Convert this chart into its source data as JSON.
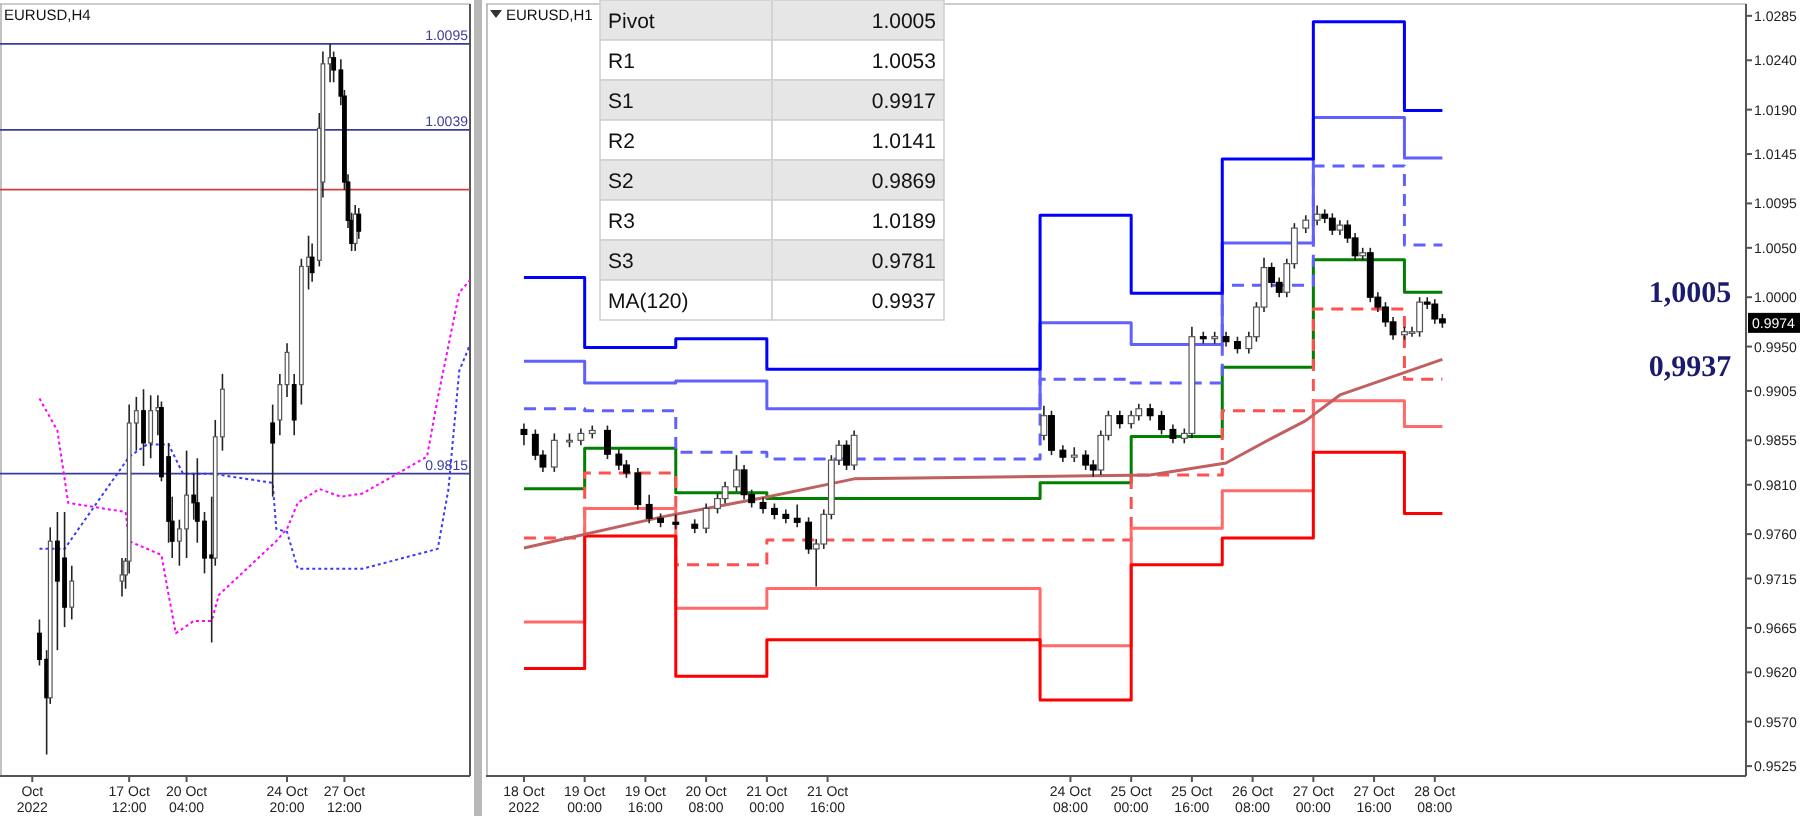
{
  "chart_data": [
    {
      "type": "candlestick",
      "title": "EURUSD,H4",
      "xlim": [
        "2022-10-11T12:00",
        "2022-11-02T08:00"
      ],
      "ylim": [
        0.9618,
        1.0121
      ],
      "tick_labels": "x",
      "xticks": [
        {
          "value": "2022-10-13T00:00",
          "label": "Oct 2022"
        },
        {
          "value": "2022-10-17T12:00",
          "label": "17 Oct 12:00"
        },
        {
          "value": "2022-10-20T04:00",
          "label": "20 Oct 04:00"
        },
        {
          "value": "2022-10-24T20:00",
          "label": "24 Oct 20:00"
        },
        {
          "value": "2022-10-27T12:00",
          "label": "27 Oct 12:00"
        }
      ],
      "x": [
        "2022-10-13T08:00",
        "2022-10-13T16:00",
        "2022-10-13T20:00",
        "2022-10-14T04:00",
        "2022-10-14T12:00",
        "2022-10-14T20:00",
        "2022-10-17T04:00",
        "2022-10-17T08:00",
        "2022-10-17T12:00",
        "2022-10-17T20:00",
        "2022-10-18T04:00",
        "2022-10-18T12:00",
        "2022-10-18T20:00",
        "2022-10-19T00:00",
        "2022-10-19T08:00",
        "2022-10-19T12:00",
        "2022-10-19T20:00",
        "2022-10-20T04:00",
        "2022-10-20T12:00",
        "2022-10-20T16:00",
        "2022-10-21T00:00",
        "2022-10-21T08:00",
        "2022-10-21T12:00",
        "2022-10-21T20:00",
        "2022-10-24T04:00",
        "2022-10-24T12:00",
        "2022-10-24T20:00",
        "2022-10-25T04:00",
        "2022-10-25T12:00",
        "2022-10-25T20:00",
        "2022-10-26T00:00",
        "2022-10-26T08:00",
        "2022-10-26T12:00",
        "2022-10-26T20:00",
        "2022-10-27T00:00",
        "2022-10-27T08:00",
        "2022-10-27T12:00",
        "2022-10-27T16:00",
        "2022-10-27T20:00",
        "2022-10-28T00:00",
        "2022-10-28T04:00"
      ],
      "ohlc": [
        [
          0.9711,
          0.972,
          0.969,
          0.9694
        ],
        [
          0.9694,
          0.97,
          0.9632,
          0.9669
        ],
        [
          0.9669,
          0.978,
          0.9665,
          0.9771
        ],
        [
          0.9771,
          0.979,
          0.97,
          0.9745
        ],
        [
          0.976,
          0.979,
          0.9715,
          0.9728
        ],
        [
          0.9728,
          0.9755,
          0.972,
          0.9745
        ],
        [
          0.9745,
          0.976,
          0.9735,
          0.9749
        ],
        [
          0.9749,
          0.976,
          0.974,
          0.9758
        ],
        [
          0.9758,
          0.986,
          0.975,
          0.9848
        ],
        [
          0.9848,
          0.9865,
          0.983,
          0.9856
        ],
        [
          0.9856,
          0.987,
          0.982,
          0.9835
        ],
        [
          0.9835,
          0.9866,
          0.9825,
          0.9856
        ],
        [
          0.9856,
          0.9866,
          0.984,
          0.9858
        ],
        [
          0.9858,
          0.9862,
          0.981,
          0.9813
        ],
        [
          0.9826,
          0.9835,
          0.977,
          0.9784
        ],
        [
          0.9784,
          0.98,
          0.976,
          0.9771
        ],
        [
          0.9771,
          0.9785,
          0.9755,
          0.9779
        ],
        [
          0.9779,
          0.983,
          0.976,
          0.9801
        ],
        [
          0.9801,
          0.9815,
          0.9785,
          0.9796
        ],
        [
          0.9796,
          0.9825,
          0.977,
          0.9784
        ],
        [
          0.9784,
          0.979,
          0.975,
          0.976
        ],
        [
          0.9762,
          0.98,
          0.9705,
          0.976
        ],
        [
          0.976,
          0.985,
          0.9755,
          0.9839
        ],
        [
          0.9839,
          0.988,
          0.983,
          0.987
        ],
        [
          0.9848,
          0.986,
          0.98,
          0.9835
        ],
        [
          0.985,
          0.988,
          0.984,
          0.9873
        ],
        [
          0.9873,
          0.99,
          0.9865,
          0.9894
        ],
        [
          0.9873,
          0.988,
          0.984,
          0.985
        ],
        [
          0.9873,
          0.9955,
          0.986,
          0.995
        ],
        [
          0.995,
          0.997,
          0.9935,
          0.9956
        ],
        [
          0.9956,
          0.9965,
          0.994,
          0.9946
        ],
        [
          0.9954,
          1.005,
          0.995,
          1.004
        ],
        [
          1.0005,
          1.009,
          0.9995,
          1.0082
        ],
        [
          1.0082,
          1.0095,
          1.007,
          1.0086
        ],
        [
          1.0086,
          1.009,
          1.007,
          1.0078
        ],
        [
          1.0078,
          1.0085,
          1.0055,
          1.0061
        ],
        [
          1.0061,
          1.0065,
          1.0,
          1.0005
        ],
        [
          1.0005,
          1.001,
          0.9975,
          0.998
        ],
        [
          0.998,
          0.9985,
          0.996,
          0.9965
        ],
        [
          0.9965,
          0.999,
          0.996,
          0.9984
        ],
        [
          0.9984,
          0.9988,
          0.9968,
          0.9973
        ]
      ],
      "series": [
        {
          "type": "line",
          "line_style": "dotted",
          "color": "#3a3aff",
          "x": [
            "2022-10-13T08:00",
            "2022-10-14T12:00",
            "2022-10-17T12:00",
            "2022-10-18T08:00",
            "2022-10-19T08:00",
            "2022-10-20T00:00",
            "2022-10-21T08:00",
            "2022-10-24T04:00",
            "2022-10-24T08:00",
            "2022-10-24T20:00",
            "2022-10-25T08:00",
            "2022-10-28T08:00",
            "2022-10-31T20:00",
            "2022-11-01T08:00",
            "2022-11-01T20:00",
            "2022-11-02T08:00"
          ],
          "values": [
            0.9766,
            0.9766,
            0.9826,
            0.9834,
            0.9834,
            0.9815,
            0.9815,
            0.9809,
            0.9779,
            0.9777,
            0.9753,
            0.9753,
            0.9766,
            0.9805,
            0.9882,
            0.9899
          ]
        },
        {
          "type": "line",
          "line_style": "dotted",
          "color": "#ff00ff",
          "x": [
            "2022-10-13T08:00",
            "2022-10-14T04:00",
            "2022-10-14T16:00",
            "2022-10-17T08:00",
            "2022-10-17T12:00",
            "2022-10-19T00:00",
            "2022-10-19T08:00",
            "2022-10-19T16:00",
            "2022-10-20T12:00",
            "2022-10-21T08:00",
            "2022-10-21T16:00",
            "2022-10-24T08:00",
            "2022-10-24T20:00",
            "2022-10-25T08:00",
            "2022-10-26T08:00",
            "2022-10-27T08:00",
            "2022-10-28T08:00",
            "2022-10-31T08:00",
            "2022-10-31T20:00",
            "2022-11-01T20:00",
            "2022-11-02T08:00"
          ],
          "values": [
            0.9864,
            0.9843,
            0.9796,
            0.979,
            0.9771,
            0.9762,
            0.9736,
            0.9711,
            0.9719,
            0.9719,
            0.9736,
            0.9771,
            0.9779,
            0.9796,
            0.9805,
            0.98,
            0.9802,
            0.9826,
            0.9864,
            0.9933,
            0.9941
          ]
        }
      ],
      "ref_lines": [
        {
          "axis": "y",
          "value": 1.0095,
          "label": "1.0095",
          "color": "#3c3c9c"
        },
        {
          "axis": "y",
          "value": 1.0039,
          "label": "1.0039",
          "color": "#3c3c9c"
        },
        {
          "axis": "y",
          "value": 1.0,
          "color": "#d04040"
        },
        {
          "axis": "y",
          "value": 0.9815,
          "label": "0.9815",
          "color": "#3c3c9c"
        }
      ]
    },
    {
      "type": "candlestick",
      "title": "EURUSD,H1",
      "xlim": [
        "2022-10-17T22:00",
        "2022-10-31T18:00"
      ],
      "ylim": [
        0.9515,
        1.0297
      ],
      "xticks": [
        {
          "value": "2022-10-18T08:00",
          "label": "18 Oct 2022"
        },
        {
          "value": "2022-10-19T00:00",
          "label": "19 Oct 00:00"
        },
        {
          "value": "2022-10-19T16:00",
          "label": "19 Oct 16:00"
        },
        {
          "value": "2022-10-20T08:00",
          "label": "20 Oct 08:00"
        },
        {
          "value": "2022-10-21T00:00",
          "label": "21 Oct 00:00"
        },
        {
          "value": "2022-10-21T16:00",
          "label": "21 Oct 16:00"
        },
        {
          "value": "2022-10-24T08:00",
          "label": "24 Oct 08:00"
        },
        {
          "value": "2022-10-25T00:00",
          "label": "25 Oct 00:00"
        },
        {
          "value": "2022-10-25T16:00",
          "label": "25 Oct 16:00"
        },
        {
          "value": "2022-10-26T08:00",
          "label": "26 Oct 08:00"
        },
        {
          "value": "2022-10-27T00:00",
          "label": "27 Oct 00:00"
        },
        {
          "value": "2022-10-27T16:00",
          "label": "27 Oct 16:00"
        },
        {
          "value": "2022-10-28T08:00",
          "label": "28 Oct 08:00"
        }
      ],
      "yticks": [
        1.0285,
        {
          "value": 1.024,
          "label": "1.0240"
        },
        {
          "value": 1.019,
          "label": "1.0190"
        },
        1.0145,
        1.0095,
        {
          "value": 1.005,
          "label": "1.0050"
        },
        {
          "value": 1.0,
          "label": "1.0000"
        },
        {
          "value": 0.995,
          "label": "0.9950"
        },
        0.9905,
        0.9855,
        {
          "value": 0.981,
          "label": "0.9810"
        },
        {
          "value": 0.976,
          "label": "0.9760"
        },
        0.9715,
        0.9665,
        {
          "value": 0.962,
          "label": "0.9620"
        },
        {
          "value": 0.957,
          "label": "0.9570"
        },
        0.9525
      ],
      "x": [
        "2022-10-18T08:00",
        "2022-10-18T11:00",
        "2022-10-18T13:00",
        "2022-10-18T16:00",
        "2022-10-18T20:00",
        "2022-10-18T23:00",
        "2022-10-19T02:00",
        "2022-10-19T06:00",
        "2022-10-19T09:00",
        "2022-10-19T11:00",
        "2022-10-19T14:00",
        "2022-10-19T17:00",
        "2022-10-19T20:00",
        "2022-10-20T00:00",
        "2022-10-20T05:00",
        "2022-10-20T08:00",
        "2022-10-20T11:00",
        "2022-10-20T13:00",
        "2022-10-20T16:00",
        "2022-10-20T18:00",
        "2022-10-20T20:00",
        "2022-10-20T23:00",
        "2022-10-21T02:00",
        "2022-10-21T05:00",
        "2022-10-21T08:00",
        "2022-10-21T11:00",
        "2022-10-21T13:00",
        "2022-10-21T15:00",
        "2022-10-21T17:00",
        "2022-10-21T19:00",
        "2022-10-21T21:00",
        "2022-10-21T23:00",
        "2022-10-24T01:00",
        "2022-10-24T03:00",
        "2022-10-24T06:00",
        "2022-10-24T09:00",
        "2022-10-24T12:00",
        "2022-10-24T14:00",
        "2022-10-24T16:00",
        "2022-10-24T18:00",
        "2022-10-24T21:00",
        "2022-10-25T00:00",
        "2022-10-25T02:00",
        "2022-10-25T05:00",
        "2022-10-25T08:00",
        "2022-10-25T11:00",
        "2022-10-25T14:00",
        "2022-10-25T16:00",
        "2022-10-25T19:00",
        "2022-10-25T22:00",
        "2022-10-26T01:00",
        "2022-10-26T04:00",
        "2022-10-26T07:00",
        "2022-10-26T09:00",
        "2022-10-26T11:00",
        "2022-10-26T13:00",
        "2022-10-26T15:00",
        "2022-10-26T17:00",
        "2022-10-26T19:00",
        "2022-10-26T22:00",
        "2022-10-27T01:00",
        "2022-10-27T03:00",
        "2022-10-27T05:00",
        "2022-10-27T07:00",
        "2022-10-27T09:00",
        "2022-10-27T11:00",
        "2022-10-27T13:00",
        "2022-10-27T15:00",
        "2022-10-27T17:00",
        "2022-10-27T19:00",
        "2022-10-27T21:00",
        "2022-10-28T00:00",
        "2022-10-28T02:00",
        "2022-10-28T04:00",
        "2022-10-28T06:00",
        "2022-10-28T08:00",
        "2022-10-28T10:00"
      ],
      "ohlc": [
        [
          0.9866,
          0.9872,
          0.985,
          0.9861
        ],
        [
          0.9861,
          0.9866,
          0.9835,
          0.984
        ],
        [
          0.984,
          0.9845,
          0.9823,
          0.9828
        ],
        [
          0.9828,
          0.9862,
          0.9823,
          0.9855
        ],
        [
          0.9855,
          0.9862,
          0.9848,
          0.9855
        ],
        [
          0.9855,
          0.9867,
          0.985,
          0.9862
        ],
        [
          0.9862,
          0.987,
          0.9857,
          0.9865
        ],
        [
          0.9865,
          0.987,
          0.9836,
          0.9841
        ],
        [
          0.9841,
          0.9846,
          0.9825,
          0.983
        ],
        [
          0.983,
          0.9835,
          0.9817,
          0.9822
        ],
        [
          0.9822,
          0.9827,
          0.9785,
          0.979
        ],
        [
          0.979,
          0.98,
          0.9771,
          0.9776
        ],
        [
          0.9776,
          0.9781,
          0.9767,
          0.9772
        ],
        [
          0.9772,
          0.978,
          0.9765,
          0.977
        ],
        [
          0.977,
          0.9775,
          0.9761,
          0.9766
        ],
        [
          0.9766,
          0.9791,
          0.9761,
          0.9786
        ],
        [
          0.9786,
          0.9801,
          0.9781,
          0.9796
        ],
        [
          0.9796,
          0.9813,
          0.9791,
          0.9808
        ],
        [
          0.9808,
          0.984,
          0.9803,
          0.9825
        ],
        [
          0.9825,
          0.983,
          0.9795,
          0.98
        ],
        [
          0.98,
          0.9805,
          0.9787,
          0.9792
        ],
        [
          0.9792,
          0.9797,
          0.9781,
          0.9786
        ],
        [
          0.9786,
          0.9791,
          0.9775,
          0.978
        ],
        [
          0.978,
          0.9785,
          0.9771,
          0.9776
        ],
        [
          0.9776,
          0.979,
          0.9767,
          0.9772
        ],
        [
          0.9772,
          0.9777,
          0.974,
          0.9745
        ],
        [
          0.9745,
          0.9755,
          0.9707,
          0.975
        ],
        [
          0.975,
          0.9785,
          0.9745,
          0.978
        ],
        [
          0.978,
          0.984,
          0.9775,
          0.9835
        ],
        [
          0.9835,
          0.9855,
          0.983,
          0.985
        ],
        [
          0.985,
          0.9855,
          0.9825,
          0.983
        ],
        [
          0.983,
          0.9865,
          0.9825,
          0.986
        ],
        [
          0.986,
          0.989,
          0.9855,
          0.988
        ],
        [
          0.988,
          0.9885,
          0.984,
          0.9845
        ],
        [
          0.9845,
          0.985,
          0.9833,
          0.9838
        ],
        [
          0.9838,
          0.9848,
          0.9833,
          0.984
        ],
        [
          0.984,
          0.9845,
          0.9825,
          0.983
        ],
        [
          0.983,
          0.9835,
          0.9818,
          0.9825
        ],
        [
          0.9825,
          0.9865,
          0.982,
          0.986
        ],
        [
          0.986,
          0.9885,
          0.9855,
          0.988
        ],
        [
          0.988,
          0.9885,
          0.9867,
          0.9872
        ],
        [
          0.9872,
          0.9885,
          0.9867,
          0.988
        ],
        [
          0.988,
          0.9892,
          0.9875,
          0.9887
        ],
        [
          0.9887,
          0.9892,
          0.9875,
          0.988
        ],
        [
          0.988,
          0.9885,
          0.9861,
          0.9866
        ],
        [
          0.9866,
          0.9871,
          0.9852,
          0.9857
        ],
        [
          0.9857,
          0.9867,
          0.9852,
          0.9862
        ],
        [
          0.9862,
          0.997,
          0.9857,
          0.996
        ],
        [
          0.996,
          0.9965,
          0.9953,
          0.9958
        ],
        [
          0.9958,
          0.9965,
          0.9953,
          0.996
        ],
        [
          0.996,
          0.9965,
          0.995,
          0.9955
        ],
        [
          0.9955,
          0.996,
          0.9943,
          0.9948
        ],
        [
          0.9948,
          0.9965,
          0.9943,
          0.996
        ],
        [
          0.996,
          0.9995,
          0.9955,
          0.999
        ],
        [
          0.999,
          1.004,
          0.9985,
          1.003
        ],
        [
          1.003,
          1.0035,
          1.001,
          1.0015
        ],
        [
          1.0015,
          1.002,
          1.0,
          1.0005
        ],
        [
          1.0005,
          1.0039,
          1.0,
          1.0034
        ],
        [
          1.0034,
          1.0075,
          1.0029,
          1.007
        ],
        [
          1.007,
          1.0083,
          1.0065,
          1.0078
        ],
        [
          1.0078,
          1.0093,
          1.0073,
          1.0084
        ],
        [
          1.0084,
          1.0089,
          1.0075,
          1.008
        ],
        [
          1.008,
          1.0085,
          1.0063,
          1.0068
        ],
        [
          1.0068,
          1.0078,
          1.0063,
          1.0073
        ],
        [
          1.0073,
          1.0078,
          1.0055,
          1.006
        ],
        [
          1.006,
          1.0065,
          1.0037,
          1.0042
        ],
        [
          1.0042,
          1.005,
          1.0037,
          1.0045
        ],
        [
          1.0045,
          1.005,
          0.9995,
          1.0
        ],
        [
          1.0,
          1.0005,
          0.9985,
          0.999
        ],
        [
          0.999,
          0.9995,
          0.997,
          0.9975
        ],
        [
          0.9975,
          0.998,
          0.9957,
          0.9962
        ],
        [
          0.9962,
          0.997,
          0.9957,
          0.9965
        ],
        [
          0.9965,
          0.997,
          0.996,
          0.9965
        ],
        [
          0.9965,
          1.0,
          0.996,
          0.9995
        ],
        [
          0.9995,
          1.0,
          0.9988,
          0.9993
        ],
        [
          0.9993,
          0.9998,
          0.9973,
          0.9978
        ],
        [
          0.9978,
          0.9983,
          0.9969,
          0.9974
        ]
      ],
      "series": [
        {
          "type": "step",
          "color": "#008000",
          "x": [
            "2022-10-18T08:00",
            "2022-10-19T00:00",
            "2022-10-20T00:00",
            "2022-10-21T00:00",
            "2022-10-24T00:00",
            "2022-10-25T00:00",
            "2022-10-26T00:00",
            "2022-10-27T00:00",
            "2022-10-28T00:00",
            "2022-10-28T10:00"
          ],
          "values": [
            0.9806,
            0.9847,
            0.9802,
            0.9796,
            0.9812,
            0.9859,
            0.9929,
            1.0038,
            1.0005,
            1.0005
          ]
        },
        {
          "type": "step",
          "color": "#6060ff",
          "line_style": "dashed",
          "x": [
            "2022-10-18T08:00",
            "2022-10-19T00:00",
            "2022-10-20T00:00",
            "2022-10-21T00:00",
            "2022-10-24T00:00",
            "2022-10-25T00:00",
            "2022-10-26T00:00",
            "2022-10-27T00:00",
            "2022-10-28T00:00",
            "2022-10-28T10:00"
          ],
          "values": [
            0.9887,
            0.9885,
            0.9843,
            0.9836,
            0.9917,
            0.9913,
            1.0012,
            1.0133,
            1.0053,
            1.0053
          ]
        },
        {
          "type": "step",
          "color": "#ff5050",
          "line_style": "dashed",
          "x": [
            "2022-10-18T08:00",
            "2022-10-19T00:00",
            "2022-10-20T00:00",
            "2022-10-21T00:00",
            "2022-10-24T00:00",
            "2022-10-25T00:00",
            "2022-10-26T00:00",
            "2022-10-27T00:00",
            "2022-10-28T00:00",
            "2022-10-28T10:00"
          ],
          "values": [
            0.9756,
            0.9822,
            0.9729,
            0.9754,
            0.9754,
            0.982,
            0.9885,
            0.9988,
            0.9917,
            0.9917
          ]
        },
        {
          "type": "step",
          "color": "#6060ff",
          "x": [
            "2022-10-18T08:00",
            "2022-10-19T00:00",
            "2022-10-20T00:00",
            "2022-10-21T00:00",
            "2022-10-24T00:00",
            "2022-10-25T00:00",
            "2022-10-26T00:00",
            "2022-10-27T00:00",
            "2022-10-28T00:00",
            "2022-10-28T10:00"
          ],
          "values": [
            0.9935,
            0.9913,
            0.9915,
            0.9887,
            0.9974,
            0.9952,
            1.0055,
            1.0182,
            1.0141,
            1.0141
          ]
        },
        {
          "type": "step",
          "color": "#ff6a6a",
          "x": [
            "2022-10-18T08:00",
            "2022-10-19T00:00",
            "2022-10-20T00:00",
            "2022-10-21T00:00",
            "2022-10-24T00:00",
            "2022-10-25T00:00",
            "2022-10-26T00:00",
            "2022-10-27T00:00",
            "2022-10-28T00:00",
            "2022-10-28T10:00"
          ],
          "values": [
            0.9671,
            0.9786,
            0.9685,
            0.9705,
            0.9647,
            0.9766,
            0.9804,
            0.9895,
            0.9869,
            0.9869
          ]
        },
        {
          "type": "step",
          "color": "#0000ff",
          "x": [
            "2022-10-18T08:00",
            "2022-10-19T00:00",
            "2022-10-20T00:00",
            "2022-10-21T00:00",
            "2022-10-24T00:00",
            "2022-10-25T00:00",
            "2022-10-26T00:00",
            "2022-10-27T00:00",
            "2022-10-28T00:00",
            "2022-10-28T10:00"
          ],
          "values": [
            1.002,
            0.9949,
            0.9958,
            0.9927,
            1.0083,
            1.0004,
            1.014,
            1.0279,
            1.0189,
            1.0189
          ]
        },
        {
          "type": "step",
          "color": "#ff0000",
          "x": [
            "2022-10-18T08:00",
            "2022-10-19T00:00",
            "2022-10-20T00:00",
            "2022-10-21T00:00",
            "2022-10-24T00:00",
            "2022-10-25T00:00",
            "2022-10-26T00:00",
            "2022-10-27T00:00",
            "2022-10-28T00:00",
            "2022-10-28T10:00"
          ],
          "values": [
            0.9624,
            0.9758,
            0.9616,
            0.9653,
            0.9592,
            0.9729,
            0.9756,
            0.9843,
            0.9781,
            0.9781
          ]
        },
        {
          "type": "line",
          "color": "#c06060",
          "x": [
            "2022-10-18T08:00",
            "2022-10-19T21:00",
            "2022-10-20T22:00",
            "2022-10-21T23:00",
            "2022-10-25T05:00",
            "2022-10-25T15:00",
            "2022-10-26T01:00",
            "2022-10-26T13:00",
            "2022-10-26T22:00",
            "2022-10-27T07:00",
            "2022-10-27T19:00",
            "2022-10-28T10:00"
          ],
          "values": [
            0.9746,
            0.9778,
            0.9796,
            0.9816,
            0.982,
            0.9826,
            0.9832,
            0.9857,
            0.9875,
            0.9901,
            0.9917,
            0.9937
          ]
        }
      ],
      "annotations": [
        "1,0005",
        "0,9937",
        {
          "text": "0.9974",
          "y": 0.9974
        }
      ]
    },
    {
      "type": "other",
      "categories": [
        "Pivot",
        "R1",
        "S1",
        "R2",
        "S2",
        "R3",
        "S3",
        "MA(120)"
      ],
      "values": [
        1.0005,
        1.0053,
        0.9917,
        1.0141,
        0.9869,
        1.0189,
        0.9781,
        0.9937
      ],
      "data_labels": true
    }
  ]
}
